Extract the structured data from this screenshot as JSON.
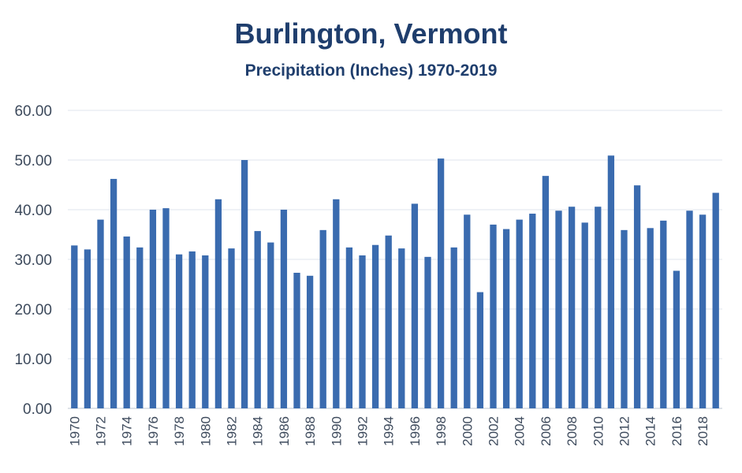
{
  "chart_data": {
    "type": "bar",
    "title": "Burlington, Vermont",
    "subtitle": "Precipitation (Inches) 1970-2019",
    "xlabel": "",
    "ylabel": "",
    "ylim": [
      0,
      60
    ],
    "yticks": [
      "0.00",
      "10.00",
      "20.00",
      "30.00",
      "40.00",
      "50.00",
      "60.00"
    ],
    "grid": true,
    "bar_color": "#3a6baf",
    "categories": [
      "1970",
      "1971",
      "1972",
      "1973",
      "1974",
      "1975",
      "1976",
      "1977",
      "1978",
      "1979",
      "1980",
      "1981",
      "1982",
      "1983",
      "1984",
      "1985",
      "1986",
      "1987",
      "1988",
      "1989",
      "1990",
      "1991",
      "1992",
      "1993",
      "1994",
      "1995",
      "1996",
      "1997",
      "1998",
      "1999",
      "2000",
      "2001",
      "2002",
      "2003",
      "2004",
      "2005",
      "2006",
      "2007",
      "2008",
      "2009",
      "2010",
      "2011",
      "2012",
      "2013",
      "2014",
      "2015",
      "2016",
      "2017",
      "2018",
      "2019"
    ],
    "xtick_labels": [
      "1970",
      "",
      "1972",
      "",
      "1974",
      "",
      "1976",
      "",
      "1978",
      "",
      "1980",
      "",
      "1982",
      "",
      "1984",
      "",
      "1986",
      "",
      "1988",
      "",
      "1990",
      "",
      "1992",
      "",
      "1994",
      "",
      "1996",
      "",
      "1998",
      "",
      "2000",
      "",
      "2002",
      "",
      "2004",
      "",
      "2006",
      "",
      "2008",
      "",
      "2010",
      "",
      "2012",
      "",
      "2014",
      "",
      "2016",
      "",
      "2018",
      ""
    ],
    "values": [
      32.8,
      32.0,
      38.0,
      46.2,
      34.6,
      32.4,
      40.0,
      40.3,
      31.0,
      31.6,
      30.8,
      42.1,
      32.2,
      50.0,
      35.7,
      33.4,
      40.0,
      27.3,
      26.7,
      35.9,
      42.1,
      32.4,
      30.8,
      32.9,
      34.8,
      32.2,
      41.2,
      30.5,
      50.3,
      32.4,
      39.0,
      23.4,
      37.0,
      36.1,
      38.0,
      39.2,
      46.8,
      39.8,
      40.6,
      37.4,
      40.6,
      50.9,
      35.9,
      44.9,
      36.3,
      37.8,
      27.7,
      39.8,
      39.0,
      43.4
    ]
  }
}
